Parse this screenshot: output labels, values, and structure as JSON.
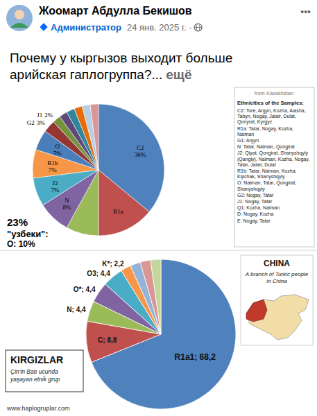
{
  "post": {
    "author": "Жоомарт Абдулла Бекишов",
    "role": "Администратор",
    "date": "24 янв. 2025 г. ·",
    "more": "•••",
    "text": "Почему у кыргызов выходит больше арийская гаплогруппа?...",
    "see_more": "ещё"
  },
  "chart_data": [
    {
      "type": "pie",
      "categories": [
        "C2",
        "R1a",
        null,
        "N",
        "J2",
        "R1b",
        "O",
        "G2",
        "J1",
        null,
        null,
        null,
        null,
        null
      ],
      "values": [
        36,
        14,
        8,
        8,
        7,
        7,
        5,
        3,
        2,
        2,
        2,
        2,
        2,
        2
      ],
      "value_labels": [
        "36%",
        null,
        null,
        "8%",
        "7%",
        "7%",
        "5%",
        "3%",
        "2%",
        null,
        null,
        null,
        null,
        null
      ],
      "colors": [
        "#4f81bd",
        "#c0504d",
        "#9bbb59",
        "#8064a2",
        "#4bacc6",
        "#f79646",
        "#4a7ebb",
        "#943634",
        "#76923c",
        "#5f497a",
        "#31859c",
        "#e46c0a",
        "#b9cde5",
        "#d99694"
      ],
      "data_labels": true,
      "annotations": [
        "23%",
        "\"узбеки\":",
        "O: 10%"
      ],
      "text_panel": {
        "subtitle": "from Kazakhstan",
        "heading": "Ethnicities of the Samples:",
        "lines": [
          "C2: Tore, Argyn, Kozha, Alasha, Tabyn, Nogay, Jalair, Dulat, Qonyrat, Kyrgyz",
          "R1a: Tatar, Nogay, Kozha, Naiman",
          "G1: Argyn",
          "N: Tatar, Naiman, Qongirat",
          "J2: Qiyat, Qongirat, Shanyshqyly (Qangly), Naiman, Kozha, Nogay, Tatar, Jalair, Dulat",
          "R1b: Tatar, Naiman, Kozha, Kipchak, Shanyshqyly",
          "O: Naiman, Tatar, Qongirat, Shanyshqyly",
          "G2: Nogay, Tatar",
          "J1: Nogay, Tatar",
          "Q1: Kozha, Naiman",
          "D: Nogay, Kozha",
          "E: Nogay, Tatar"
        ]
      }
    },
    {
      "type": "pie",
      "title": "KIRGIZLAR",
      "subtitle": "Çin'in Batı ucunda yaşayan etnik grup",
      "values": [
        68.2,
        8.8,
        4.4,
        4.4,
        4.4,
        2.2,
        2.2,
        2.2,
        2.2
      ],
      "value_labels": [
        "R1a1; 68,2",
        "C; 8,8",
        "N; 4,4",
        "O*; 4,4",
        "O3; 4,4",
        "K*; 2,2",
        null,
        null,
        null
      ],
      "colors": [
        "#4f81bd",
        "#c0504d",
        "#9bbb59",
        "#8064a2",
        "#4bacc6",
        "#f79646",
        "#95b3d7",
        "#d99694",
        "#c3d69b"
      ],
      "data_labels": true,
      "map_title": "CHINA",
      "map_caption": "A branch of Turkic people in China",
      "source": "www.haplogruplar.com"
    }
  ]
}
